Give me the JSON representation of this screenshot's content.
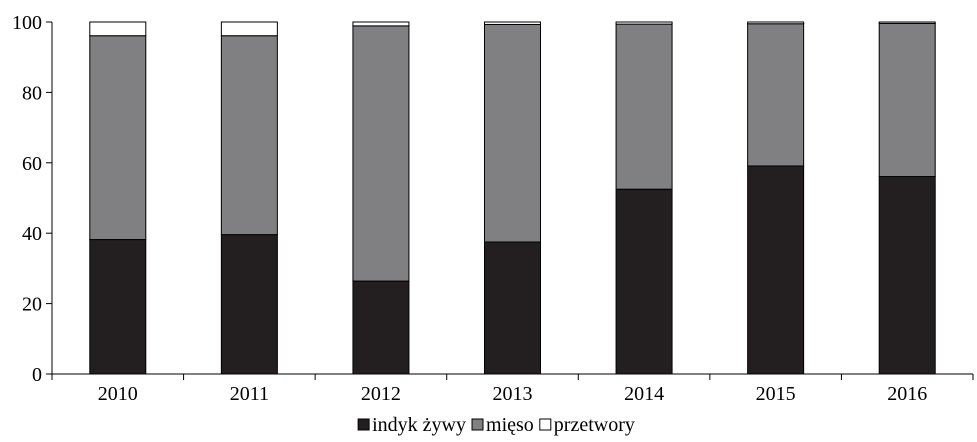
{
  "chart_data": {
    "type": "bar",
    "stacked": true,
    "categories": [
      "2010",
      "2011",
      "2012",
      "2013",
      "2014",
      "2015",
      "2016"
    ],
    "series": [
      {
        "name": "indyk żywy",
        "color": "#231f20",
        "values": [
          38.2,
          39.6,
          26.4,
          37.5,
          52.5,
          59.1,
          56.1
        ]
      },
      {
        "name": "mięso",
        "color": "#808083",
        "values": [
          57.9,
          56.5,
          72.5,
          61.8,
          46.9,
          40.4,
          43.5
        ]
      },
      {
        "name": "przetwory",
        "color": "#ffffff",
        "values": [
          3.9,
          3.9,
          1.1,
          0.7,
          0.6,
          0.5,
          0.4
        ]
      }
    ],
    "ylim": [
      0,
      100
    ],
    "yticks": [
      "0",
      "20",
      "40",
      "60",
      "80",
      "100"
    ],
    "ytick_values": [
      0,
      20,
      40,
      60,
      80,
      100
    ],
    "xlabel": "",
    "ylabel": "",
    "title": "",
    "grid": false,
    "legend_position": "bottom-center"
  }
}
